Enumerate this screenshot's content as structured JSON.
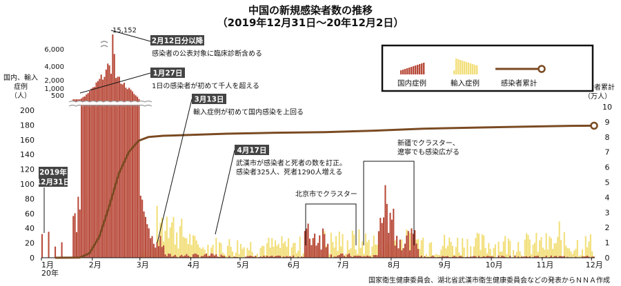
{
  "title": "中国の新規感染者数の推移",
  "subtitle": "（2019年12月31日～20年12月2日）",
  "source": "国家衛生健康委員会、湖北省武漢市衛生健康委員会などの発表からＮＮＡ作成",
  "colors": {
    "domestic": "#b84a3a",
    "imported": "#f2df7a",
    "cumulative": "#7a4a22",
    "box": "#444444"
  },
  "chart_data": {
    "type": "bar",
    "left_axis_label": "国内、輸入\n症例\n（人）",
    "right_axis_label": "感染者累計\n（万人）",
    "left_ticks": [
      "0",
      "20",
      "40",
      "60",
      "80",
      "100",
      "120",
      "140",
      "160",
      "180",
      "200"
    ],
    "right_ticks": [
      "0",
      "1",
      "2",
      "3",
      "4",
      "5",
      "6",
      "7",
      "8",
      "9",
      "10"
    ],
    "inset_ticks": [
      "500",
      "1,000",
      "2,000",
      "4,000",
      "6,000",
      "15,152"
    ],
    "x_ticks": [
      "1月\n20年",
      "2月",
      "3月",
      "4月",
      "5月",
      "6月",
      "7月",
      "8月",
      "9月",
      "10月",
      "11月",
      "12月"
    ],
    "ylim": [
      0,
      200
    ],
    "y2lim": [
      0,
      10
    ],
    "peak_value": 15152,
    "series": [
      {
        "name": "国内症例",
        "note": "daily domestic new cases"
      },
      {
        "name": "輸入症例",
        "note": "daily imported new cases"
      },
      {
        "name": "感染者累計",
        "note": "cumulative cases (10k)"
      }
    ],
    "cumulative_points": [
      [
        0,
        0
      ],
      [
        0.5,
        0.01
      ],
      [
        0.7,
        0.3
      ],
      [
        0.9,
        1.4
      ],
      [
        1.1,
        3.4
      ],
      [
        1.3,
        5.6
      ],
      [
        1.5,
        7.0
      ],
      [
        1.7,
        7.75
      ],
      [
        1.9,
        8.0
      ],
      [
        2.2,
        8.08
      ],
      [
        2.6,
        8.12
      ],
      [
        3.5,
        8.22
      ],
      [
        4.5,
        8.28
      ],
      [
        5.5,
        8.32
      ],
      [
        6.5,
        8.42
      ],
      [
        7.5,
        8.55
      ],
      [
        8.5,
        8.62
      ],
      [
        9.5,
        8.68
      ],
      [
        10.5,
        8.74
      ],
      [
        11.0,
        8.75
      ]
    ]
  },
  "legend": {
    "domestic": "国内症例",
    "imported": "輸入症例",
    "cumulative": "感染者累計"
  },
  "annotations": [
    {
      "box": "2019年",
      "box2": "12月31日",
      "text": ""
    },
    {
      "box": "2月12日分以降",
      "text": "感染者の公表対象に臨床診断含める"
    },
    {
      "box": "1月27日",
      "text": "1日の感染者が初めて千人を超える"
    },
    {
      "box": "3月13日",
      "text": "輸入症例が初めて国内感染を上回る"
    },
    {
      "box": "4月17日",
      "text": "武漢市が感染者と死者の数を訂正。",
      "text2": "感染者325人、死者1290人増える"
    },
    {
      "box": "",
      "text": "北京市でクラスター"
    },
    {
      "box": "",
      "text": "新疆でクラスター、",
      "text2": "遼寧でも感染広がる"
    }
  ]
}
